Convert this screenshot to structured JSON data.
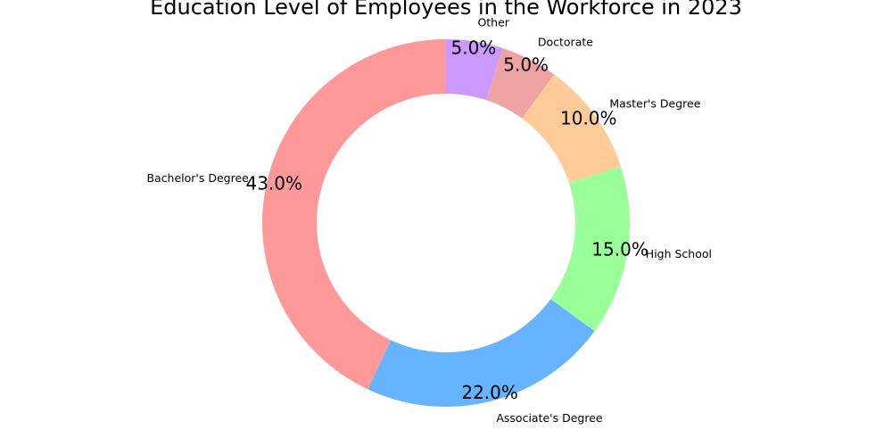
{
  "chart_data": {
    "type": "pie",
    "donut": true,
    "title": "Education Level of Employees in the Workforce in 2023",
    "start_angle_deg": 90,
    "direction": "counterclockwise",
    "slices": [
      {
        "label": "Bachelor's Degree",
        "value": 43.0,
        "pct_label": "43.0%",
        "color": "#ff9999"
      },
      {
        "label": "Associate's Degree",
        "value": 22.0,
        "pct_label": "22.0%",
        "color": "#66b3ff"
      },
      {
        "label": "High School",
        "value": 15.0,
        "pct_label": "15.0%",
        "color": "#99ff99"
      },
      {
        "label": "Master's Degree",
        "value": 10.0,
        "pct_label": "10.0%",
        "color": "#ffcc99"
      },
      {
        "label": "Doctorate",
        "value": 5.0,
        "pct_label": "5.0%",
        "color": "#f0a3a3"
      },
      {
        "label": "Other",
        "value": 5.0,
        "pct_label": "5.0%",
        "color": "#cc99ff"
      }
    ]
  }
}
